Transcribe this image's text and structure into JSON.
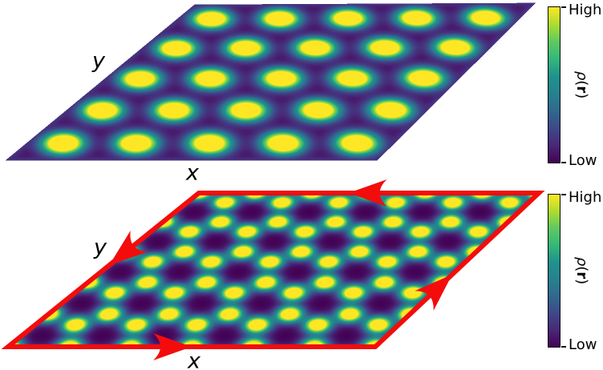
{
  "colors": {
    "background": "#ffffff",
    "loop_red": "#f40c0c",
    "text": "#000000",
    "viridis": [
      "#440154",
      "#482878",
      "#3e4989",
      "#31688e",
      "#26828e",
      "#21918c",
      "#35b779",
      "#5ec962",
      "#addc30",
      "#fde725"
    ]
  },
  "chart_data": [
    {
      "id": "top-panel",
      "type": "heatmap",
      "description": "Sheared periodic density plot: triangular lattice of bright density peaks (viridis colormap, Low=dark purple to High=yellow)",
      "colormap": "viridis",
      "axes": {
        "x": "x",
        "y": "y"
      },
      "colorbar": {
        "high": "High",
        "low": "Low",
        "rho": "ρ",
        "open": "(",
        "vec": "r",
        "close": ")"
      },
      "lattice": {
        "style": "triangular",
        "nx": 5,
        "ny": 5,
        "site_offsets": [
          [
            0.5,
            0.5
          ]
        ],
        "sigma": 0.2,
        "clip": 0.62
      },
      "quad": {
        "tl": [
          243,
          6
        ],
        "tr": [
          667,
          4
        ],
        "br": [
          470,
          200
        ],
        "bl": [
          8,
          200
        ]
      }
    },
    {
      "id": "bottom-panel",
      "type": "heatmap",
      "description": "Sheared periodic density plot: honeycomb arrangement of bright peaks with dark hexagon centers, enclosed by red periodic-boundary loop with direction arrows",
      "colormap": "viridis",
      "axes": {
        "x": "x",
        "y": "y"
      },
      "colorbar": {
        "high": "High",
        "low": "Low",
        "rho": "ρ",
        "open": "(",
        "vec": "r",
        "close": ")"
      },
      "lattice": {
        "style": "honeycomb",
        "nx": 6,
        "ny": 5,
        "site_offsets": [
          [
            0,
            0
          ],
          [
            0.6667,
            0.6667
          ]
        ],
        "sigma": 0.15,
        "clip": 0.68
      },
      "quad": {
        "tl": [
          248,
          241
        ],
        "tr": [
          672,
          241
        ],
        "br": [
          468,
          433
        ],
        "bl": [
          10,
          433
        ]
      },
      "boundary_loop": {
        "direction": "counterclockwise",
        "arrows": [
          {
            "edge": "bottom",
            "t": 0.5
          },
          {
            "edge": "right",
            "t": 0.47
          },
          {
            "edge": "top",
            "t": 0.56
          },
          {
            "edge": "left",
            "t": 0.47
          }
        ]
      }
    }
  ]
}
